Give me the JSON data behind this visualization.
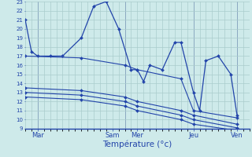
{
  "background_color": "#ceeaea",
  "grid_color": "#aacccc",
  "line_color": "#2244aa",
  "xlabel": "Température (°c)",
  "ylim": [
    9,
    23
  ],
  "yticks": [
    9,
    10,
    11,
    12,
    13,
    14,
    15,
    16,
    17,
    18,
    19,
    20,
    21,
    22,
    23
  ],
  "xlim": [
    0,
    36
  ],
  "x_tick_positions": [
    2,
    14,
    18,
    27,
    34
  ],
  "x_tick_labels": [
    "Mar",
    "Sam",
    "Mer",
    "Jeu",
    "Ven"
  ],
  "x_vlines": [
    2,
    16,
    27,
    34
  ],
  "series1_x": [
    0,
    1,
    2,
    4,
    6,
    9,
    11,
    13,
    15,
    17,
    18,
    19,
    20,
    22,
    24,
    25,
    27,
    28,
    29,
    31,
    33,
    34
  ],
  "series1_y": [
    21,
    17.5,
    17,
    17,
    17,
    19,
    22.5,
    23,
    20,
    15.5,
    15.5,
    14.2,
    16,
    15.5,
    18.5,
    18.5,
    13,
    11,
    16.5,
    17,
    15,
    10.5
  ],
  "series2_x": [
    0,
    9,
    16,
    18,
    25,
    27,
    34
  ],
  "series2_y": [
    17,
    16.8,
    16.0,
    15.5,
    14.5,
    11.0,
    10.2
  ],
  "series3_x": [
    0,
    9,
    16,
    18,
    25,
    27,
    34
  ],
  "series3_y": [
    13.5,
    13.2,
    12.5,
    12.0,
    11.0,
    10.5,
    9.5
  ],
  "series4_x": [
    0,
    9,
    16,
    18,
    25,
    27,
    34
  ],
  "series4_y": [
    13.0,
    12.7,
    12.0,
    11.5,
    10.5,
    10.0,
    9.1
  ],
  "series5_x": [
    0,
    9,
    16,
    18,
    25,
    27,
    34
  ],
  "series5_y": [
    12.5,
    12.2,
    11.5,
    11.0,
    10.0,
    9.5,
    8.8
  ]
}
